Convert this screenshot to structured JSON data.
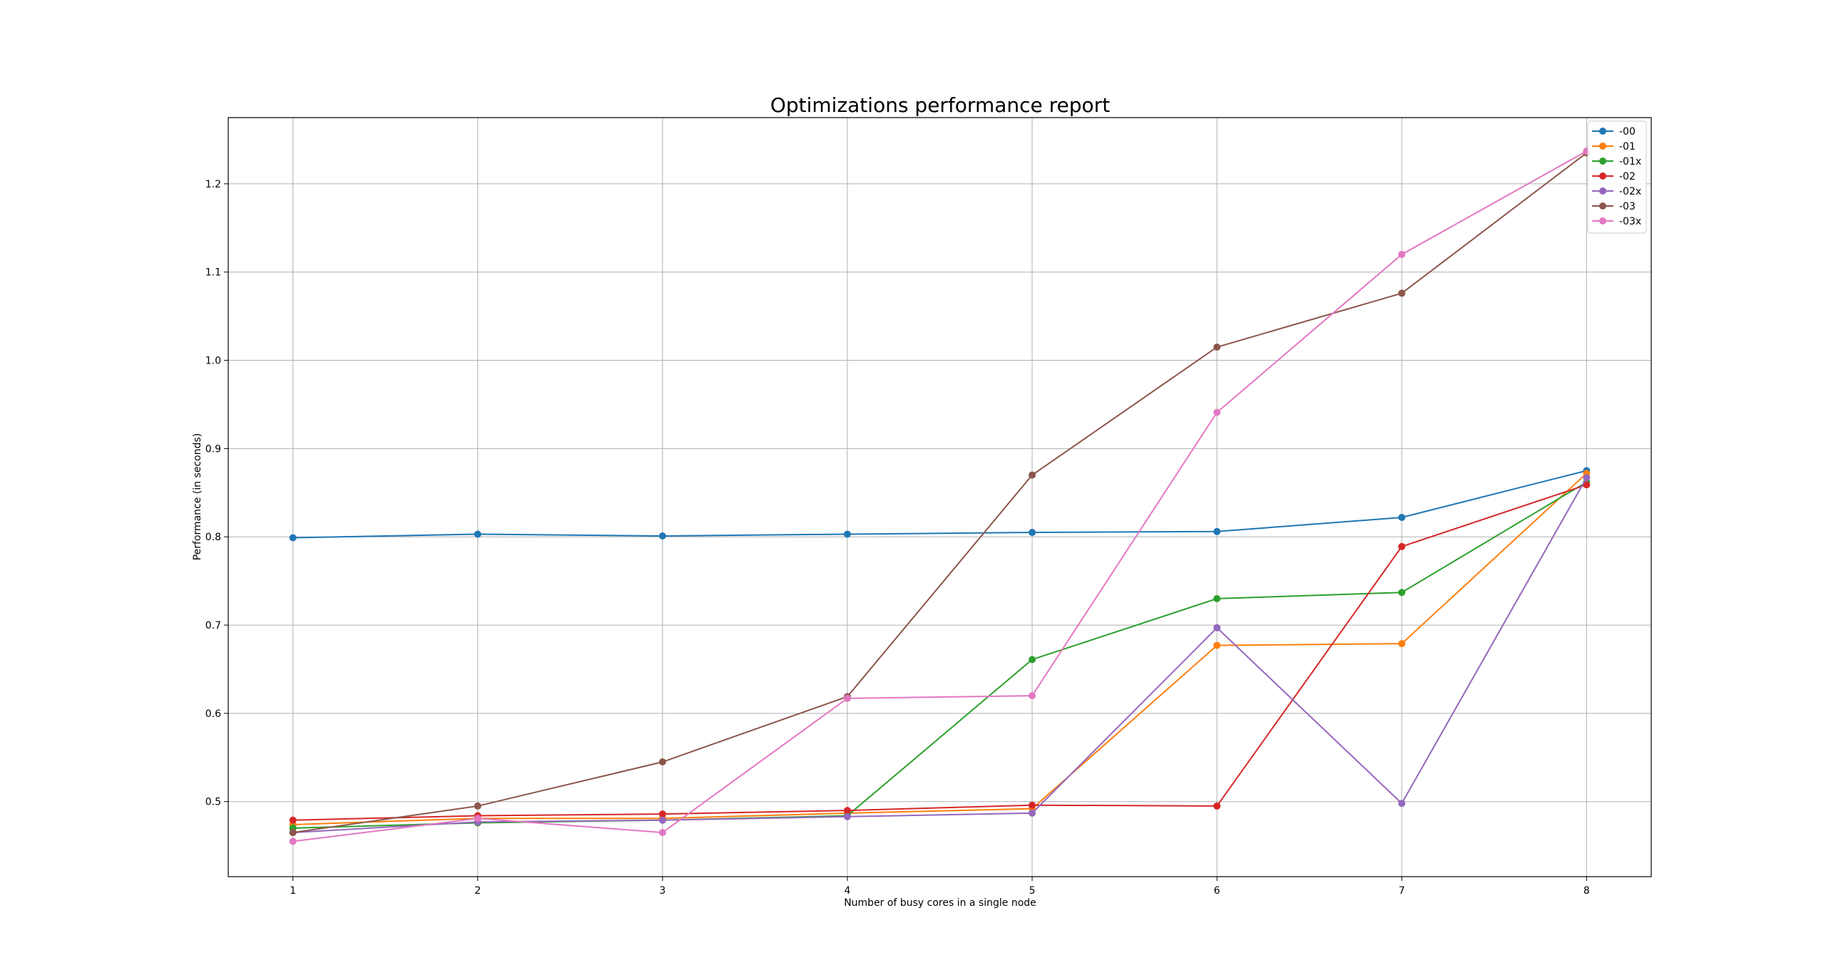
{
  "chart_data": {
    "type": "line",
    "title": "Optimizations performance report",
    "xlabel": "Number of busy cores in a single node",
    "ylabel": "Performance (in seconds)",
    "x": [
      1,
      2,
      3,
      4,
      5,
      6,
      7,
      8
    ],
    "xlim": [
      0.65,
      8.35
    ],
    "ylim": [
      0.415,
      1.275
    ],
    "xticks": [
      1,
      2,
      3,
      4,
      5,
      6,
      7,
      8
    ],
    "yticks": [
      0.5,
      0.6,
      0.7,
      0.8,
      0.9,
      1.0,
      1.1,
      1.2
    ],
    "ytick_labels": [
      "0.5",
      "0.6",
      "0.7",
      "0.8",
      "0.9",
      "1.0",
      "1.1",
      "1.2"
    ],
    "grid": true,
    "legend_position": "top-right",
    "series": [
      {
        "name": "-00",
        "color": "#1f77b4",
        "values": [
          0.799,
          0.803,
          0.801,
          0.803,
          0.805,
          0.806,
          0.822,
          0.875
        ]
      },
      {
        "name": "-01",
        "color": "#ff7f0e",
        "values": [
          0.474,
          0.481,
          0.481,
          0.487,
          0.492,
          0.677,
          0.679,
          0.872
        ]
      },
      {
        "name": "-01x",
        "color": "#2ca02c",
        "values": [
          0.47,
          0.476,
          0.479,
          0.484,
          0.661,
          0.73,
          0.737,
          0.862
        ]
      },
      {
        "name": "-02",
        "color": "#d62728",
        "values": [
          0.479,
          0.484,
          0.486,
          0.49,
          0.496,
          0.495,
          0.789,
          0.859
        ]
      },
      {
        "name": "-02x",
        "color": "#9467bd",
        "values": [
          0.465,
          0.477,
          0.479,
          0.483,
          0.487,
          0.697,
          0.498,
          0.867
        ]
      },
      {
        "name": "-03",
        "color": "#8c564b",
        "values": [
          0.465,
          0.495,
          0.545,
          0.619,
          0.87,
          1.015,
          1.076,
          1.235
        ]
      },
      {
        "name": "-03x",
        "color": "#e377c2",
        "values": [
          0.455,
          0.481,
          0.465,
          0.617,
          0.62,
          0.941,
          1.12,
          1.237
        ]
      }
    ]
  }
}
